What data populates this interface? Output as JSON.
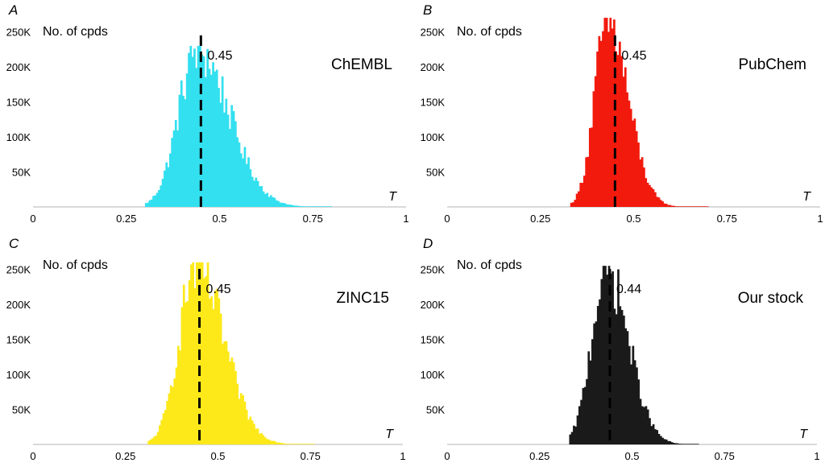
{
  "chart_data": [
    {
      "type": "bar",
      "panel": "A",
      "database": "ChEMBL",
      "ylabel": "No. of cpds",
      "xlabel": "T",
      "xlim": [
        0,
        1
      ],
      "ylim": [
        0,
        270000
      ],
      "xticks": [
        0,
        0.25,
        0.5,
        0.75,
        1
      ],
      "xtick_labels": [
        "0",
        "0.25",
        "0.5",
        "0.75",
        "1"
      ],
      "yticks": [
        50000,
        100000,
        150000,
        200000,
        250000
      ],
      "ytick_labels": [
        "50K",
        "100K",
        "150K",
        "200K",
        "250K"
      ],
      "median": 0.45,
      "median_label": "0.45",
      "color": "#33e0ef",
      "distribution": {
        "start": 0.3,
        "end": 0.8,
        "mode": 0.44,
        "peak": 230000,
        "sigma_left": 0.05,
        "sigma_right": 0.085
      }
    },
    {
      "type": "bar",
      "panel": "B",
      "database": "PubChem",
      "ylabel": "No. of cpds",
      "xlabel": "T",
      "xlim": [
        0,
        1
      ],
      "ylim": [
        0,
        270000
      ],
      "xticks": [
        0,
        0.25,
        0.5,
        0.75,
        1
      ],
      "xtick_labels": [
        "0",
        "0.25",
        "0.5",
        "0.75",
        "1"
      ],
      "yticks": [
        50000,
        100000,
        150000,
        200000,
        250000
      ],
      "ytick_labels": [
        "50K",
        "100K",
        "150K",
        "200K",
        "250K"
      ],
      "median": 0.45,
      "median_label": "0.45",
      "color": "#f21a0d",
      "distribution": {
        "start": 0.33,
        "end": 0.7,
        "mode": 0.43,
        "peak": 270000,
        "sigma_left": 0.035,
        "sigma_right": 0.055
      }
    },
    {
      "type": "bar",
      "panel": "C",
      "database": "ZINC15",
      "ylabel": "No. of cpds",
      "xlabel": "T",
      "xlim": [
        0,
        1
      ],
      "ylim": [
        0,
        270000
      ],
      "xticks": [
        0,
        0.25,
        0.5,
        0.75,
        1
      ],
      "xtick_labels": [
        "0",
        "0.25",
        "0.5",
        "0.75",
        "1"
      ],
      "yticks": [
        50000,
        100000,
        150000,
        200000,
        250000
      ],
      "ytick_labels": [
        "50K",
        "100K",
        "150K",
        "200K",
        "250K"
      ],
      "median": 0.45,
      "median_label": "0.45",
      "color": "#fde91a",
      "distribution": {
        "start": 0.31,
        "end": 0.76,
        "mode": 0.44,
        "peak": 260000,
        "sigma_left": 0.045,
        "sigma_right": 0.075
      }
    },
    {
      "type": "bar",
      "panel": "D",
      "database": "Our stock",
      "ylabel": "No. of cpds",
      "xlabel": "T",
      "xlim": [
        0,
        1
      ],
      "ylim": [
        0,
        270000
      ],
      "xticks": [
        0,
        0.25,
        0.5,
        0.75,
        1
      ],
      "xtick_labels": [
        "0",
        "0.25",
        "0.5",
        "0.75",
        "1"
      ],
      "yticks": [
        50000,
        100000,
        150000,
        200000,
        250000
      ],
      "ytick_labels": [
        "50K",
        "100K",
        "150K",
        "200K",
        "250K"
      ],
      "median": 0.44,
      "median_label": "0.44",
      "color": "#1a1a1a",
      "distribution": {
        "start": 0.33,
        "end": 0.68,
        "mode": 0.43,
        "peak": 255000,
        "sigma_left": 0.04,
        "sigma_right": 0.06
      }
    }
  ]
}
